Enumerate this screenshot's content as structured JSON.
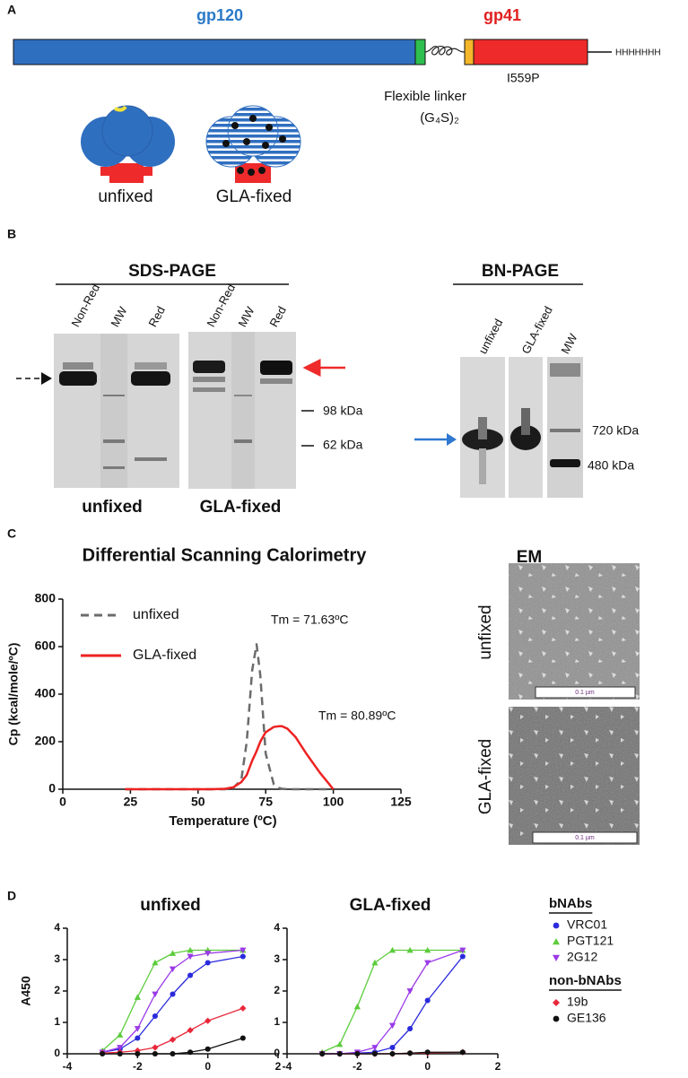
{
  "panel_a": {
    "label": "A",
    "gp120": "gp120",
    "gp41": "gp41",
    "mutation": "I559P",
    "linker": "Flexible linker",
    "linker_formula": "(G₄S)₂",
    "his_tag": "HHHHHHH",
    "states": [
      "unfixed",
      "GLA-fixed"
    ]
  },
  "panel_b": {
    "label": "B",
    "sds_title": "SDS-PAGE",
    "sds_lanes": [
      "Non-Red",
      "MW",
      "Red"
    ],
    "sds_gels": [
      "unfixed",
      "GLA-fixed"
    ],
    "sds_markers": [
      "98 kDa",
      "62 kDa"
    ],
    "bn_title": "BN-PAGE",
    "bn_lanes": [
      "unfixed",
      "GLA-fixed",
      "MW"
    ],
    "bn_markers": [
      "720 kDa",
      "480 kDa"
    ]
  },
  "panel_c": {
    "label": "C",
    "em_title": "EM",
    "em_labels": [
      "unfixed",
      "GLA-fixed"
    ],
    "scale_bar": "0.1 µm"
  },
  "panel_d": {
    "label": "D",
    "legend_groups": [
      "bNAbs",
      "non-bNAbs"
    ]
  },
  "chart_data": [
    {
      "type": "line",
      "title": "Differential Scanning Calorimetry",
      "xlabel": "Temperature (ºC)",
      "ylabel": "Cp (kcal/mole/ºC)",
      "x": [
        23,
        30,
        40,
        50,
        55,
        60,
        63,
        66,
        68,
        70,
        71.63,
        73,
        75,
        78,
        80,
        81,
        83,
        86,
        90,
        95,
        100
      ],
      "series": [
        {
          "name": "unfixed",
          "color": "#6b6b6b",
          "line_style": "dashed",
          "values": [
            0,
            0,
            0,
            0,
            0,
            0,
            5,
            40,
            200,
            500,
            610,
            480,
            150,
            20,
            5,
            2,
            0,
            0,
            0,
            0,
            0
          ]
        },
        {
          "name": "GLA-fixed",
          "color": "#ee2222",
          "line_style": "solid",
          "values": [
            0,
            0,
            0,
            0,
            0,
            2,
            8,
            30,
            60,
            120,
            160,
            200,
            240,
            262,
            265,
            265,
            255,
            220,
            150,
            70,
            0
          ]
        }
      ],
      "annotations": [
        "Tm = 71.63ºC",
        "Tm = 80.89ºC"
      ],
      "xlim": [
        0,
        125
      ],
      "ylim": [
        0,
        800
      ],
      "xticks": [
        0,
        25,
        50,
        75,
        100,
        125
      ],
      "yticks": [
        0,
        200,
        400,
        600,
        800
      ],
      "legend": "upper left"
    },
    {
      "type": "line",
      "title": "unfixed",
      "ylabel": "A450",
      "x": [
        -3,
        -2.5,
        -2,
        -1.5,
        -1,
        -0.5,
        0,
        1
      ],
      "series": [
        {
          "name": "VRC01",
          "color": "#2b2bdd",
          "marker": "circle",
          "values": [
            0.05,
            0.15,
            0.5,
            1.2,
            1.9,
            2.5,
            2.9,
            3.1
          ]
        },
        {
          "name": "PGT121",
          "color": "#5ccc3c",
          "marker": "triangle-up",
          "values": [
            0.1,
            0.6,
            1.8,
            2.9,
            3.2,
            3.3,
            3.3,
            3.3
          ]
        },
        {
          "name": "2G12",
          "color": "#9a3ae8",
          "marker": "triangle-down",
          "values": [
            0.05,
            0.2,
            0.8,
            1.9,
            2.7,
            3.1,
            3.2,
            3.3
          ]
        },
        {
          "name": "19b",
          "color": "#e8283a",
          "marker": "diamond",
          "values": [
            0.02,
            0.05,
            0.1,
            0.2,
            0.45,
            0.75,
            1.05,
            1.45
          ]
        },
        {
          "name": "GE136",
          "color": "#111111",
          "marker": "circle",
          "values": [
            0,
            0,
            0,
            0,
            0,
            0.05,
            0.15,
            0.5
          ]
        }
      ],
      "xlim": [
        -4,
        2
      ],
      "ylim": [
        0,
        4
      ],
      "xticks": [
        -4,
        -2,
        0,
        2
      ],
      "yticks": [
        0,
        1,
        2,
        3,
        4
      ]
    },
    {
      "type": "line",
      "title": "GLA-fixed",
      "x": [
        -3,
        -2.5,
        -2,
        -1.5,
        -1,
        -0.5,
        0,
        1
      ],
      "series": [
        {
          "name": "VRC01",
          "color": "#2b2bdd",
          "marker": "circle",
          "values": [
            0,
            0,
            0.02,
            0.05,
            0.2,
            0.8,
            1.7,
            3.1
          ]
        },
        {
          "name": "PGT121",
          "color": "#5ccc3c",
          "marker": "triangle-up",
          "values": [
            0.05,
            0.3,
            1.5,
            2.9,
            3.3,
            3.3,
            3.3,
            3.3
          ]
        },
        {
          "name": "2G12",
          "color": "#9a3ae8",
          "marker": "triangle-down",
          "values": [
            0,
            0,
            0.05,
            0.2,
            0.9,
            2.0,
            2.9,
            3.3
          ]
        },
        {
          "name": "19b",
          "color": "#e8283a",
          "marker": "diamond",
          "values": [
            0,
            0,
            0,
            0,
            0,
            0.02,
            0.03,
            0.05
          ]
        },
        {
          "name": "GE136",
          "color": "#111111",
          "marker": "circle",
          "values": [
            0,
            0,
            0,
            0,
            0,
            0.02,
            0.05,
            0.05
          ]
        }
      ],
      "xlim": [
        -4,
        2
      ],
      "ylim": [
        0,
        4
      ],
      "xticks": [
        -4,
        -2,
        0,
        2
      ],
      "yticks": [
        0,
        1,
        2,
        3,
        4
      ]
    }
  ]
}
